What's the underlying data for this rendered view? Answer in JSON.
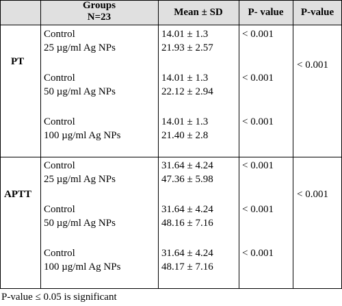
{
  "headers": {
    "groups_line1": "Groups",
    "groups_line2": "N=23",
    "mean_sd": "Mean ± SD",
    "p_value_1": "P- value",
    "p_value_2": "P-value"
  },
  "sections": [
    {
      "label": "PT",
      "overall_p": "< 0.001",
      "rows": [
        {
          "group_line1": "Control",
          "group_line2": "25 µg/ml Ag NPs",
          "mean_line1": "14.01 ± 1.3",
          "mean_line2": "21.93 ± 2.57",
          "p": "< 0.001"
        },
        {
          "group_line1": "Control",
          "group_line2": "50 µg/ml Ag NPs",
          "mean_line1": "14.01 ± 1.3",
          "mean_line2": "22.12 ± 2.94",
          "p": "< 0.001"
        },
        {
          "group_line1": "Control",
          "group_line2": "100 µg/ml Ag NPs",
          "mean_line1": "14.01 ± 1.3",
          "mean_line2": "21.40 ± 2.8",
          "p": "< 0.001"
        }
      ]
    },
    {
      "label": "APTT",
      "overall_p": "< 0.001",
      "rows": [
        {
          "group_line1": "Control",
          "group_line2": "25 µg/ml Ag NPs",
          "mean_line1": "31.64 ± 4.24",
          "mean_line2": "47.36 ± 5.98",
          "p": "< 0.001"
        },
        {
          "group_line1": "Control",
          "group_line2": "50 µg/ml Ag NPs",
          "mean_line1": "31.64 ± 4.24",
          "mean_line2": "48.16 ± 7.16",
          "p": "< 0.001"
        },
        {
          "group_line1": "Control",
          "group_line2": "100 µg/ml Ag NPs",
          "mean_line1": "31.64 ± 4.24",
          "mean_line2": "48.17 ± 7.16",
          "p": "< 0.001"
        }
      ]
    }
  ],
  "footnote": "P-value ≤ 0.05 is significant"
}
